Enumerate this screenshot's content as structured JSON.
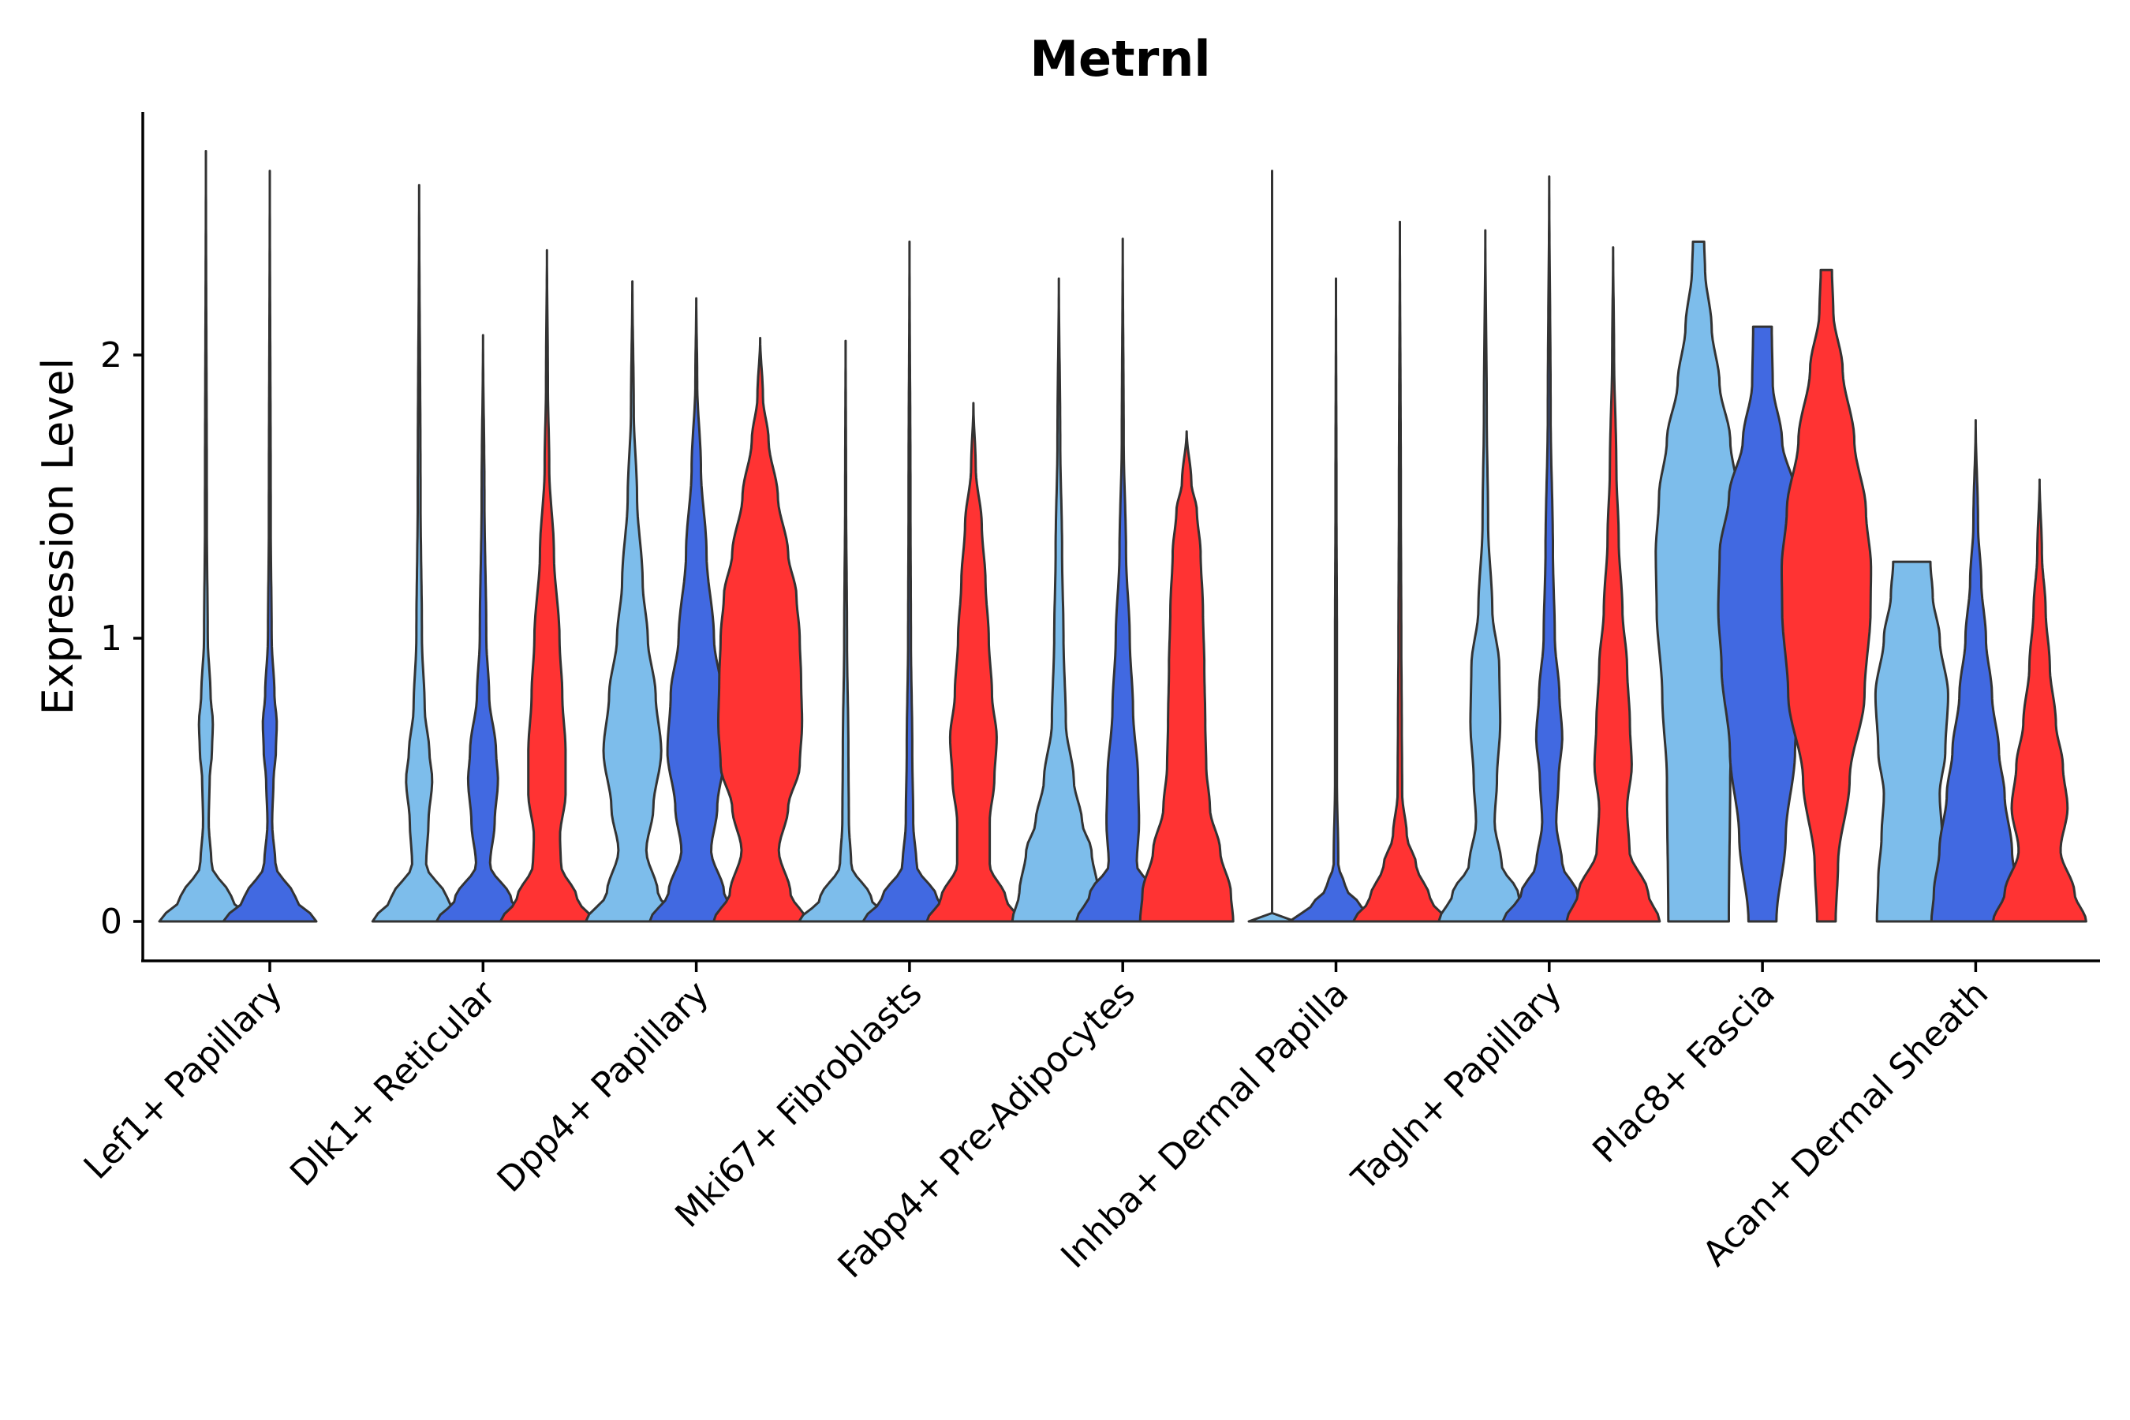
{
  "chart_data": {
    "type": "violin",
    "title": "Metrnl",
    "xlabel": "",
    "ylabel": "Expression Level",
    "ylim": [
      -0.14,
      2.88
    ],
    "yticks": [
      0,
      1,
      2
    ],
    "grid": false,
    "legend": "none",
    "groups": [
      "group-1",
      "group-2",
      "group-3"
    ],
    "colors": {
      "group-1": "#7DBDEB",
      "group-2": "#4169E1",
      "group-3": "#FF3333"
    },
    "categories": [
      "Lef1+ Papillary",
      "Dlk1+ Reticular",
      "Dpp4+ Papillary",
      "Mki67+ Fibroblasts",
      "Fabp4+ Pre-Adipocytes",
      "Inhba+ Dermal Papilla",
      "Tagln+ Papillary",
      "Plac8+ Fascia",
      "Acan+ Dermal Sheath"
    ],
    "violins": [
      {
        "category": "Lef1+ Papillary",
        "group": "group-1",
        "max": 2.72,
        "profile": [
          [
            0,
            1.0
          ],
          [
            0.08,
            0.55
          ],
          [
            0.2,
            0.12
          ],
          [
            0.35,
            0.06
          ],
          [
            0.5,
            0.08
          ],
          [
            0.6,
            0.13
          ],
          [
            0.7,
            0.15
          ],
          [
            0.8,
            0.1
          ],
          [
            1.0,
            0.04
          ],
          [
            1.4,
            0.02
          ],
          [
            2.72,
            0.0
          ]
        ]
      },
      {
        "category": "Lef1+ Papillary",
        "group": "group-2",
        "max": 2.65,
        "profile": [
          [
            0,
            1.0
          ],
          [
            0.08,
            0.55
          ],
          [
            0.2,
            0.12
          ],
          [
            0.35,
            0.05
          ],
          [
            0.5,
            0.08
          ],
          [
            0.6,
            0.13
          ],
          [
            0.7,
            0.15
          ],
          [
            0.8,
            0.1
          ],
          [
            1.0,
            0.04
          ],
          [
            1.4,
            0.02
          ],
          [
            2.65,
            0.0
          ]
        ]
      },
      {
        "category": "Dlk1+ Reticular",
        "group": "group-1",
        "max": 2.6,
        "profile": [
          [
            0,
            1.0
          ],
          [
            0.08,
            0.6
          ],
          [
            0.2,
            0.15
          ],
          [
            0.35,
            0.2
          ],
          [
            0.5,
            0.28
          ],
          [
            0.6,
            0.22
          ],
          [
            0.75,
            0.12
          ],
          [
            1.0,
            0.06
          ],
          [
            1.5,
            0.03
          ],
          [
            2.6,
            0.0
          ]
        ]
      },
      {
        "category": "Dlk1+ Reticular",
        "group": "group-2",
        "max": 2.07,
        "profile": [
          [
            0,
            1.0
          ],
          [
            0.08,
            0.6
          ],
          [
            0.2,
            0.15
          ],
          [
            0.35,
            0.25
          ],
          [
            0.5,
            0.32
          ],
          [
            0.6,
            0.28
          ],
          [
            0.8,
            0.13
          ],
          [
            1.0,
            0.07
          ],
          [
            1.5,
            0.03
          ],
          [
            2.07,
            0.0
          ]
        ]
      },
      {
        "category": "Dlk1+ Reticular",
        "group": "group-3",
        "max": 2.37,
        "profile": [
          [
            0,
            1.0
          ],
          [
            0.08,
            0.65
          ],
          [
            0.2,
            0.3
          ],
          [
            0.3,
            0.28
          ],
          [
            0.45,
            0.4
          ],
          [
            0.6,
            0.4
          ],
          [
            0.8,
            0.33
          ],
          [
            1.0,
            0.27
          ],
          [
            1.3,
            0.15
          ],
          [
            1.6,
            0.05
          ],
          [
            1.9,
            0.02
          ],
          [
            2.37,
            0.0
          ]
        ]
      },
      {
        "category": "Dpp4+ Papillary",
        "group": "group-1",
        "max": 2.26,
        "profile": [
          [
            0,
            1.0
          ],
          [
            0.1,
            0.55
          ],
          [
            0.25,
            0.3
          ],
          [
            0.4,
            0.45
          ],
          [
            0.6,
            0.62
          ],
          [
            0.8,
            0.5
          ],
          [
            1.0,
            0.33
          ],
          [
            1.2,
            0.22
          ],
          [
            1.5,
            0.1
          ],
          [
            1.8,
            0.03
          ],
          [
            2.26,
            0.0
          ]
        ]
      },
      {
        "category": "Dpp4+ Papillary",
        "group": "group-2",
        "max": 2.2,
        "profile": [
          [
            0,
            1.0
          ],
          [
            0.1,
            0.6
          ],
          [
            0.25,
            0.32
          ],
          [
            0.4,
            0.45
          ],
          [
            0.6,
            0.62
          ],
          [
            0.8,
            0.55
          ],
          [
            1.0,
            0.38
          ],
          [
            1.3,
            0.22
          ],
          [
            1.6,
            0.1
          ],
          [
            1.9,
            0.02
          ],
          [
            2.2,
            0.0
          ]
        ]
      },
      {
        "category": "Dpp4+ Papillary",
        "group": "group-3",
        "max": 2.06,
        "profile": [
          [
            0,
            1.0
          ],
          [
            0.1,
            0.65
          ],
          [
            0.25,
            0.4
          ],
          [
            0.4,
            0.6
          ],
          [
            0.55,
            0.85
          ],
          [
            0.7,
            0.9
          ],
          [
            0.85,
            0.88
          ],
          [
            1.0,
            0.85
          ],
          [
            1.15,
            0.78
          ],
          [
            1.3,
            0.6
          ],
          [
            1.5,
            0.38
          ],
          [
            1.7,
            0.18
          ],
          [
            1.85,
            0.06
          ],
          [
            2.06,
            0.0
          ]
        ]
      },
      {
        "category": "Mki67+ Fibroblasts",
        "group": "group-1",
        "max": 2.05,
        "profile": [
          [
            0,
            1.0
          ],
          [
            0.08,
            0.55
          ],
          [
            0.2,
            0.12
          ],
          [
            0.35,
            0.07
          ],
          [
            0.6,
            0.06
          ],
          [
            1.0,
            0.03
          ],
          [
            1.5,
            0.01
          ],
          [
            2.05,
            0.0
          ]
        ]
      },
      {
        "category": "Mki67+ Fibroblasts",
        "group": "group-2",
        "max": 2.4,
        "profile": [
          [
            0,
            1.0
          ],
          [
            0.08,
            0.6
          ],
          [
            0.2,
            0.15
          ],
          [
            0.35,
            0.08
          ],
          [
            0.6,
            0.06
          ],
          [
            1.0,
            0.03
          ],
          [
            1.5,
            0.02
          ],
          [
            2.4,
            0.0
          ]
        ]
      },
      {
        "category": "Mki67+ Fibroblasts",
        "group": "group-3",
        "max": 1.83,
        "profile": [
          [
            0,
            1.0
          ],
          [
            0.08,
            0.7
          ],
          [
            0.2,
            0.35
          ],
          [
            0.35,
            0.35
          ],
          [
            0.5,
            0.45
          ],
          [
            0.65,
            0.5
          ],
          [
            0.8,
            0.4
          ],
          [
            1.0,
            0.33
          ],
          [
            1.2,
            0.26
          ],
          [
            1.4,
            0.18
          ],
          [
            1.6,
            0.05
          ],
          [
            1.83,
            0.0
          ]
        ]
      },
      {
        "category": "Fabp4+ Pre-Adipocytes",
        "group": "group-1",
        "max": 2.27,
        "profile": [
          [
            0,
            1.0
          ],
          [
            0.1,
            0.85
          ],
          [
            0.25,
            0.7
          ],
          [
            0.35,
            0.5
          ],
          [
            0.5,
            0.32
          ],
          [
            0.7,
            0.15
          ],
          [
            1.0,
            0.1
          ],
          [
            1.3,
            0.07
          ],
          [
            1.7,
            0.03
          ],
          [
            2.27,
            0.0
          ]
        ]
      },
      {
        "category": "Fabp4+ Pre-Adipocytes",
        "group": "group-2",
        "max": 2.41,
        "profile": [
          [
            0,
            1.0
          ],
          [
            0.1,
            0.7
          ],
          [
            0.2,
            0.3
          ],
          [
            0.35,
            0.35
          ],
          [
            0.5,
            0.33
          ],
          [
            0.75,
            0.22
          ],
          [
            1.0,
            0.15
          ],
          [
            1.3,
            0.07
          ],
          [
            1.7,
            0.02
          ],
          [
            2.41,
            0.0
          ]
        ]
      },
      {
        "category": "Fabp4+ Pre-Adipocytes",
        "group": "group-3",
        "max": 1.73,
        "profile": [
          [
            0,
            1.0
          ],
          [
            0.1,
            0.95
          ],
          [
            0.25,
            0.72
          ],
          [
            0.4,
            0.5
          ],
          [
            0.55,
            0.42
          ],
          [
            0.7,
            0.4
          ],
          [
            0.9,
            0.38
          ],
          [
            1.1,
            0.35
          ],
          [
            1.3,
            0.3
          ],
          [
            1.45,
            0.22
          ],
          [
            1.55,
            0.1
          ],
          [
            1.73,
            0.0
          ]
        ]
      },
      {
        "category": "Inhba+ Dermal Papilla",
        "group": "group-1",
        "max": 2.65,
        "profile": [
          [
            0,
            0.5
          ],
          [
            0.003,
            0.0
          ],
          [
            2.65,
            0.0
          ]
        ]
      },
      {
        "category": "Inhba+ Dermal Papilla",
        "group": "group-2",
        "max": 2.27,
        "profile": [
          [
            0,
            1.0
          ],
          [
            0.05,
            0.55
          ],
          [
            0.12,
            0.2
          ],
          [
            0.2,
            0.05
          ],
          [
            0.5,
            0.02
          ],
          [
            1.0,
            0.02
          ],
          [
            1.5,
            0.01
          ],
          [
            2.27,
            0.0
          ]
        ]
      },
      {
        "category": "Inhba+ Dermal Papilla",
        "group": "group-3",
        "max": 2.47,
        "profile": [
          [
            0,
            1.0
          ],
          [
            0.08,
            0.65
          ],
          [
            0.2,
            0.35
          ],
          [
            0.3,
            0.15
          ],
          [
            0.45,
            0.05
          ],
          [
            0.7,
            0.04
          ],
          [
            1.0,
            0.03
          ],
          [
            1.5,
            0.02
          ],
          [
            2.47,
            0.0
          ]
        ]
      },
      {
        "category": "Tagln+ Papillary",
        "group": "group-1",
        "max": 2.44,
        "profile": [
          [
            0,
            1.0
          ],
          [
            0.1,
            0.7
          ],
          [
            0.2,
            0.35
          ],
          [
            0.35,
            0.2
          ],
          [
            0.5,
            0.25
          ],
          [
            0.7,
            0.32
          ],
          [
            0.9,
            0.3
          ],
          [
            1.1,
            0.15
          ],
          [
            1.4,
            0.06
          ],
          [
            1.8,
            0.03
          ],
          [
            2.44,
            0.0
          ]
        ]
      },
      {
        "category": "Tagln+ Papillary",
        "group": "group-2",
        "max": 2.63,
        "profile": [
          [
            0,
            1.0
          ],
          [
            0.1,
            0.6
          ],
          [
            0.2,
            0.28
          ],
          [
            0.35,
            0.15
          ],
          [
            0.5,
            0.2
          ],
          [
            0.65,
            0.28
          ],
          [
            0.8,
            0.22
          ],
          [
            1.0,
            0.12
          ],
          [
            1.3,
            0.08
          ],
          [
            1.8,
            0.03
          ],
          [
            2.63,
            0.0
          ]
        ]
      },
      {
        "category": "Tagln+ Papillary",
        "group": "group-3",
        "max": 2.38,
        "profile": [
          [
            0,
            1.0
          ],
          [
            0.1,
            0.75
          ],
          [
            0.25,
            0.35
          ],
          [
            0.4,
            0.3
          ],
          [
            0.55,
            0.4
          ],
          [
            0.7,
            0.36
          ],
          [
            0.9,
            0.3
          ],
          [
            1.1,
            0.2
          ],
          [
            1.35,
            0.12
          ],
          [
            1.6,
            0.07
          ],
          [
            2.0,
            0.02
          ],
          [
            2.38,
            0.0
          ]
        ]
      },
      {
        "category": "Plac8+ Fascia",
        "group": "group-1",
        "max": 2.4,
        "profile": [
          [
            0,
            0.65
          ],
          [
            0.5,
            0.68
          ],
          [
            0.8,
            0.78
          ],
          [
            1.1,
            0.9
          ],
          [
            1.3,
            0.92
          ],
          [
            1.5,
            0.85
          ],
          [
            1.7,
            0.68
          ],
          [
            1.9,
            0.45
          ],
          [
            2.1,
            0.28
          ],
          [
            2.3,
            0.14
          ],
          [
            2.4,
            0.12
          ]
        ]
      },
      {
        "category": "Plac8+ Fascia",
        "group": "group-2",
        "max": 2.1,
        "profile": [
          [
            0,
            0.3
          ],
          [
            0.3,
            0.5
          ],
          [
            0.6,
            0.7
          ],
          [
            0.9,
            0.88
          ],
          [
            1.1,
            0.95
          ],
          [
            1.3,
            0.92
          ],
          [
            1.5,
            0.72
          ],
          [
            1.7,
            0.42
          ],
          [
            1.9,
            0.22
          ],
          [
            2.1,
            0.2
          ]
        ]
      },
      {
        "category": "Plac8+ Fascia",
        "group": "group-3",
        "max": 2.3,
        "profile": [
          [
            0,
            0.2
          ],
          [
            0.2,
            0.25
          ],
          [
            0.5,
            0.5
          ],
          [
            0.8,
            0.82
          ],
          [
            1.1,
            0.95
          ],
          [
            1.25,
            0.96
          ],
          [
            1.45,
            0.85
          ],
          [
            1.7,
            0.6
          ],
          [
            1.95,
            0.35
          ],
          [
            2.15,
            0.15
          ],
          [
            2.3,
            0.12
          ]
        ]
      },
      {
        "category": "Acan+ Dermal Sheath",
        "group": "group-1",
        "max": 1.27,
        "profile": [
          [
            0,
            0.75
          ],
          [
            0.15,
            0.72
          ],
          [
            0.3,
            0.65
          ],
          [
            0.45,
            0.6
          ],
          [
            0.6,
            0.72
          ],
          [
            0.8,
            0.78
          ],
          [
            1.0,
            0.6
          ],
          [
            1.15,
            0.45
          ],
          [
            1.27,
            0.4
          ]
        ]
      },
      {
        "category": "Acan+ Dermal Sheath",
        "group": "group-2",
        "max": 1.77,
        "profile": [
          [
            0,
            0.95
          ],
          [
            0.1,
            0.9
          ],
          [
            0.25,
            0.78
          ],
          [
            0.45,
            0.62
          ],
          [
            0.6,
            0.5
          ],
          [
            0.8,
            0.35
          ],
          [
            1.0,
            0.22
          ],
          [
            1.2,
            0.12
          ],
          [
            1.4,
            0.05
          ],
          [
            1.77,
            0.0
          ]
        ]
      },
      {
        "category": "Acan+ Dermal Sheath",
        "group": "group-3",
        "max": 1.56,
        "profile": [
          [
            0,
            1.0
          ],
          [
            0.1,
            0.75
          ],
          [
            0.25,
            0.45
          ],
          [
            0.4,
            0.6
          ],
          [
            0.55,
            0.5
          ],
          [
            0.7,
            0.35
          ],
          [
            0.9,
            0.22
          ],
          [
            1.1,
            0.13
          ],
          [
            1.3,
            0.05
          ],
          [
            1.56,
            0.0
          ]
        ]
      }
    ]
  }
}
